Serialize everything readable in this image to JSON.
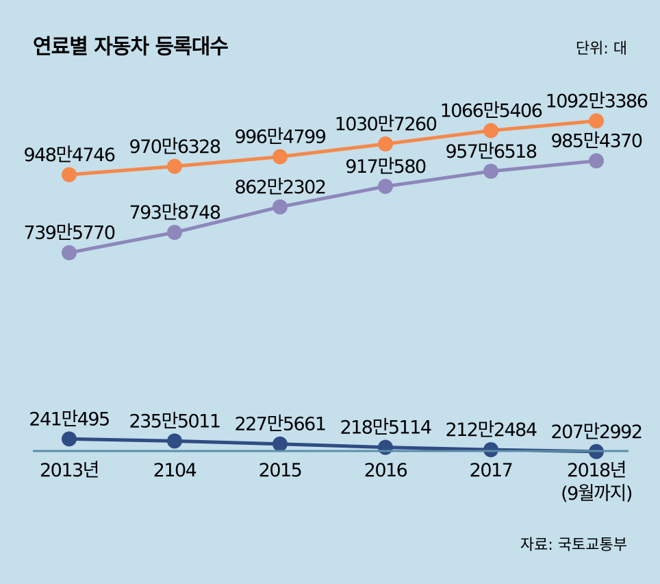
{
  "chart_data": {
    "type": "line",
    "title": "연료별 자동차 등록대수",
    "unit": "단위: 대",
    "source": "자료: 국토교통부",
    "categories": [
      [
        "2013년"
      ],
      [
        "2104"
      ],
      [
        "2015"
      ],
      [
        "2016"
      ],
      [
        "2017"
      ],
      [
        "2018년",
        "(9월까지)"
      ]
    ],
    "ylim": [
      1500000,
      11500000
    ],
    "grid": false,
    "legend": "none",
    "series": [
      {
        "color": "#f5884a",
        "values": [
          9484746,
          9706328,
          9964799,
          10307260,
          10665406,
          10923386
        ],
        "labels": [
          "948만4746",
          "970만6328",
          "996만4799",
          "1030만7260",
          "1066만5406",
          "1092만3386"
        ]
      },
      {
        "color": "#8d87bb",
        "values": [
          7395770,
          7938748,
          8622302,
          9170580,
          9576518,
          9854370
        ],
        "labels": [
          "739만5770",
          "793만8748",
          "862만2302",
          "917만580",
          "957만6518",
          "985만4370"
        ]
      },
      {
        "color": "#2f4c84",
        "values": [
          2410495,
          2355011,
          2275661,
          2185114,
          2122484,
          2072992
        ],
        "labels": [
          "241만495",
          "235만5011",
          "227만5661",
          "218만5114",
          "212만2484",
          "207만2992"
        ]
      }
    ],
    "axis_color": "#5d8ea8"
  }
}
